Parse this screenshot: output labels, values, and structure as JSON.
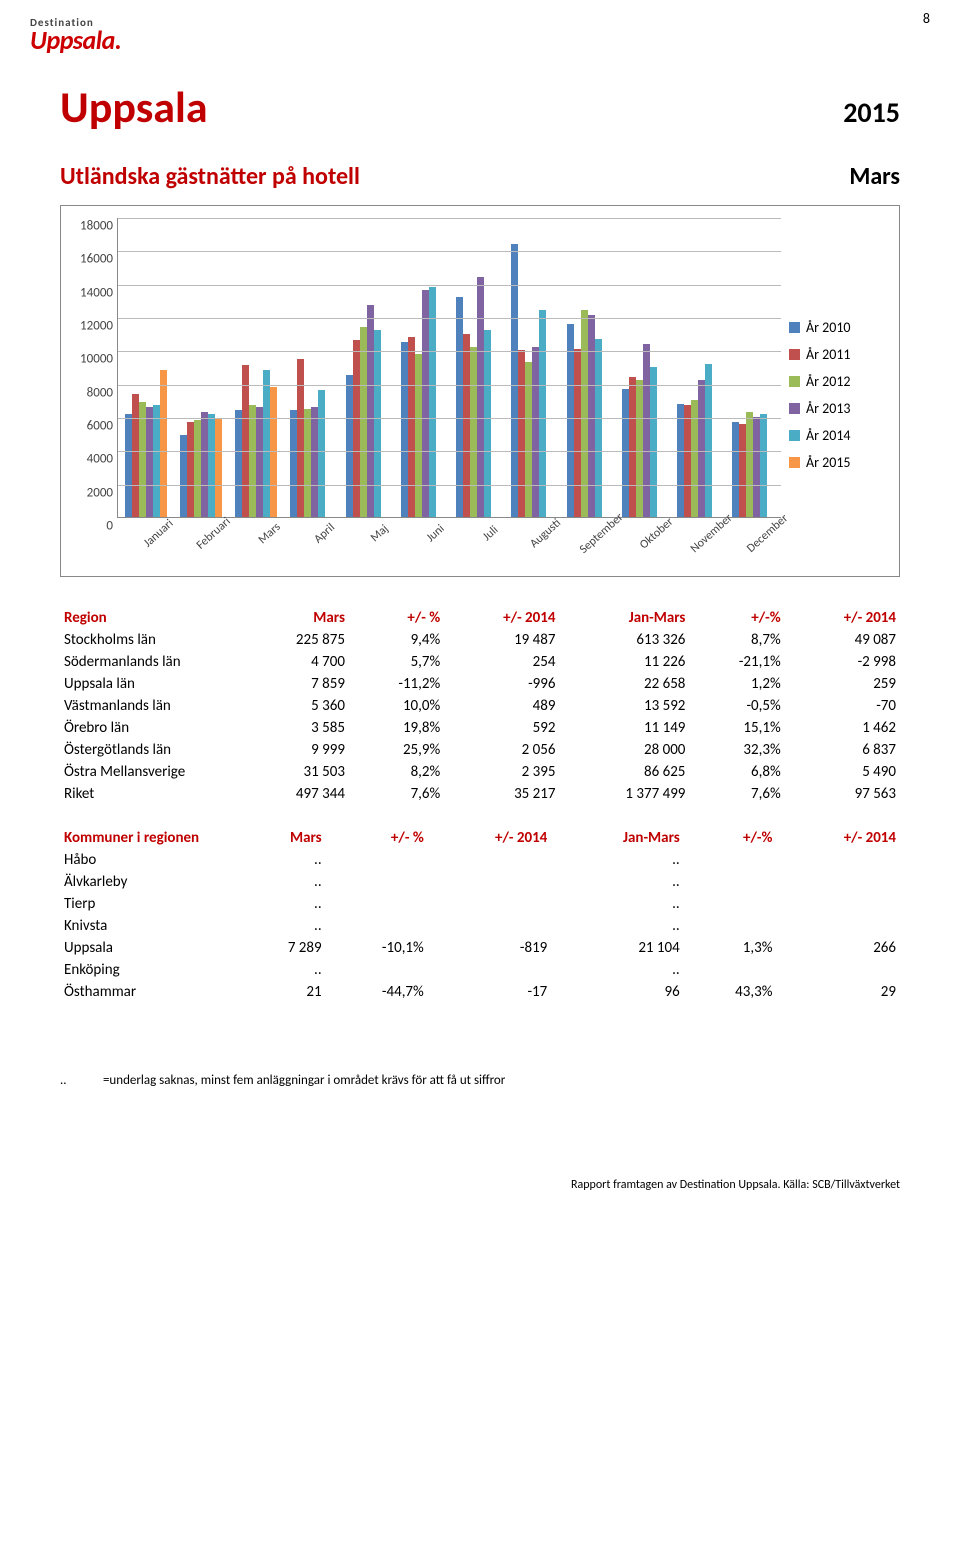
{
  "page_number": "8",
  "logo": {
    "top": "Destination",
    "main": "Uppsala",
    "dot": "."
  },
  "title": "Uppsala",
  "year": "2015",
  "subtitle": "Utländska gästnätter på hotell",
  "month": "Mars",
  "chart": {
    "ymax": 18000,
    "ytick_step": 2000,
    "yticks": [
      "0",
      "2000",
      "4000",
      "6000",
      "8000",
      "10000",
      "12000",
      "14000",
      "16000",
      "18000"
    ],
    "x_categories": [
      "Januari",
      "Februari",
      "Mars",
      "April",
      "Maj",
      "Juni",
      "Juli",
      "Augusti",
      "September",
      "Oktober",
      "November",
      "December"
    ],
    "series": [
      {
        "label": "År 2010",
        "color": "#4f81bd",
        "values": [
          6200,
          4900,
          6400,
          6400,
          8500,
          10500,
          13200,
          16400,
          11600,
          7700,
          6800,
          5700
        ]
      },
      {
        "label": "År 2011",
        "color": "#c0504d",
        "values": [
          7400,
          5700,
          9100,
          9500,
          10600,
          10800,
          11000,
          10000,
          10100,
          8400,
          6700,
          5600
        ]
      },
      {
        "label": "År 2012",
        "color": "#9bbb59",
        "values": [
          6900,
          5800,
          6700,
          6500,
          11400,
          9800,
          10200,
          9300,
          12400,
          8200,
          7000,
          6300
        ]
      },
      {
        "label": "År 2013",
        "color": "#8064a2",
        "values": [
          6600,
          6300,
          6600,
          6600,
          12700,
          13600,
          14400,
          10200,
          12100,
          10400,
          8200,
          6000
        ]
      },
      {
        "label": "År 2014",
        "color": "#4bacc6",
        "values": [
          6700,
          6200,
          8800,
          7600,
          11200,
          13800,
          11200,
          12400,
          10700,
          9000,
          9200,
          6200
        ]
      },
      {
        "label": "År 2015",
        "color": "#f79646",
        "values": [
          8800,
          5900,
          7800,
          null,
          null,
          null,
          null,
          null,
          null,
          null,
          null,
          null
        ]
      }
    ],
    "grid_color": "#bbb",
    "axis_color": "#888",
    "background": "#ffffff"
  },
  "table1": {
    "headers": [
      "Region",
      "Mars",
      "+/- %",
      "+/- 2014",
      "Jan-Mars",
      "+/-%",
      "+/- 2014"
    ],
    "rows": [
      [
        "Stockholms län",
        "225 875",
        "9,4%",
        "19 487",
        "613 326",
        "8,7%",
        "49 087"
      ],
      [
        "Södermanlands län",
        "4 700",
        "5,7%",
        "254",
        "11 226",
        "-21,1%",
        "-2 998"
      ],
      [
        "Uppsala län",
        "7 859",
        "-11,2%",
        "-996",
        "22 658",
        "1,2%",
        "259"
      ],
      [
        "Västmanlands län",
        "5 360",
        "10,0%",
        "489",
        "13 592",
        "-0,5%",
        "-70"
      ],
      [
        "Örebro län",
        "3 585",
        "19,8%",
        "592",
        "11 149",
        "15,1%",
        "1 462"
      ],
      [
        "Östergötlands län",
        "9 999",
        "25,9%",
        "2 056",
        "28 000",
        "32,3%",
        "6 837"
      ],
      [
        "Östra Mellansverige",
        "31 503",
        "8,2%",
        "2 395",
        "86 625",
        "6,8%",
        "5 490"
      ],
      [
        "Riket",
        "497 344",
        "7,6%",
        "35 217",
        "1 377 499",
        "7,6%",
        "97 563"
      ]
    ]
  },
  "table2": {
    "headers": [
      "Kommuner i regionen",
      "Mars",
      "+/- %",
      "+/- 2014",
      "Jan-Mars",
      "+/-%",
      "+/- 2014"
    ],
    "rows": [
      [
        "Håbo",
        "..",
        "",
        "",
        "..",
        "",
        ""
      ],
      [
        "Älvkarleby",
        "..",
        "",
        "",
        "..",
        "",
        ""
      ],
      [
        "Tierp",
        "..",
        "",
        "",
        "..",
        "",
        ""
      ],
      [
        "Knivsta",
        "..",
        "",
        "",
        "..",
        "",
        ""
      ],
      [
        "Uppsala",
        "7 289",
        "-10,1%",
        "-819",
        "21 104",
        "1,3%",
        "266"
      ],
      [
        "Enköping",
        "..",
        "",
        "",
        "..",
        "",
        ""
      ],
      [
        "Östhammar",
        "21",
        "-44,7%",
        "-17",
        "96",
        "43,3%",
        "29"
      ]
    ]
  },
  "footnote_prefix": "..",
  "footnote": "=underlag saknas, minst fem anläggningar i området krävs för att få ut siffror",
  "source": "Rapport framtagen av Destination Uppsala. Källa: SCB/Tillväxtverket"
}
